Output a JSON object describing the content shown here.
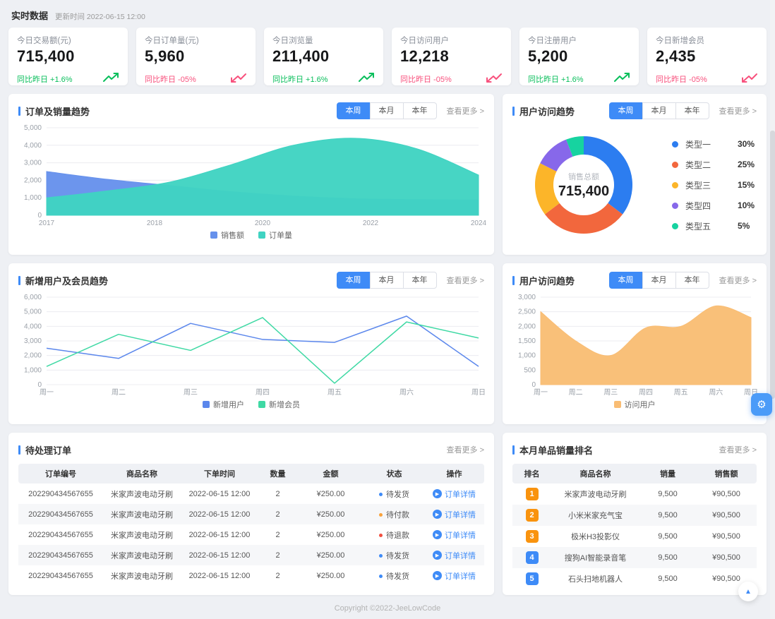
{
  "page": {
    "title": "实时数据",
    "updated_label": "更新时间 2022-06-15 12:00",
    "footer": "Copyright ©2022-JeeLowCode",
    "view_more": "查看更多 >",
    "tabs": [
      "本周",
      "本月",
      "本年"
    ],
    "active_tab": "本周"
  },
  "colors": {
    "accent": "#3e8bf7",
    "up_green": "#0abf5c",
    "down_pink": "#f8517d",
    "status": {
      "blue": "#3e8bf7",
      "orange": "#f9a23c",
      "red": "#f24f3f"
    },
    "badge": {
      "orange": "#f9930e",
      "blue": "#3e8bf7"
    }
  },
  "stat_cards": [
    {
      "label": "今日交易额(元)",
      "value": "715,400",
      "change_label": "同比昨日",
      "change": "+1.6%",
      "trend": "up"
    },
    {
      "label": "今日订单量(元)",
      "value": "5,960",
      "change_label": "同比昨日",
      "change": "-05%",
      "trend": "down"
    },
    {
      "label": "今日浏览量",
      "value": "211,400",
      "change_label": "同比昨日",
      "change": "+1.6%",
      "trend": "up"
    },
    {
      "label": "今日访问用户",
      "value": "12,218",
      "change_label": "同比昨日",
      "change": "-05%",
      "trend": "down"
    },
    {
      "label": "今日注册用户",
      "value": "5,200",
      "change_label": "同比昨日",
      "change": "+1.6%",
      "trend": "up"
    },
    {
      "label": "今日新增会员",
      "value": "2,435",
      "change_label": "同比昨日",
      "change": "-05%",
      "trend": "down"
    }
  ],
  "chart_data": [
    {
      "id": "orders-sales-trend",
      "type": "area",
      "title": "订单及销量趋势",
      "smooth": true,
      "area": true,
      "ylim": [
        0,
        5000
      ],
      "ystep": 1000,
      "grid": true,
      "legend_position": "bottom",
      "x_ticks": [
        {
          "label": "2017",
          "pos": 0
        },
        {
          "label": "2018",
          "pos": 0.25
        },
        {
          "label": "2020",
          "pos": 0.5
        },
        {
          "label": "2022",
          "pos": 0.75
        },
        {
          "label": "2024",
          "pos": 1
        }
      ],
      "series": [
        {
          "name": "销售额",
          "color": "#6691ec",
          "values": [
            2500,
            2050,
            1700,
            1350,
            1100,
            950,
            900,
            870
          ]
        },
        {
          "name": "订单量",
          "color": "#40d3c2",
          "values": [
            1000,
            1400,
            1900,
            2900,
            4000,
            4400,
            3800,
            2300
          ]
        }
      ]
    },
    {
      "id": "user-visit-donut",
      "type": "pie",
      "title": "用户访问趋势",
      "center_label": "销售总额",
      "center_value": "715,400",
      "legend_position": "right",
      "slices": [
        {
          "name": "类型一",
          "pct": "30%",
          "value": 30,
          "color": "#2c7df0"
        },
        {
          "name": "类型二",
          "pct": "25%",
          "value": 25,
          "color": "#f2673d"
        },
        {
          "name": "类型三",
          "pct": "15%",
          "value": 15,
          "color": "#fcb529"
        },
        {
          "name": "类型四",
          "pct": "10%",
          "value": 10,
          "color": "#8768ea"
        },
        {
          "name": "类型五",
          "pct": "5%",
          "value": 5,
          "color": "#16d3a0"
        }
      ]
    },
    {
      "id": "new-users-members-trend",
      "type": "line",
      "title": "新增用户及会员趋势",
      "smooth": false,
      "area": false,
      "ylim": [
        0,
        6000
      ],
      "ystep": 1000,
      "grid": true,
      "legend_position": "bottom",
      "x_ticks": [
        {
          "label": "周一",
          "pos": 0
        },
        {
          "label": "周二",
          "pos": 0.1667
        },
        {
          "label": "周三",
          "pos": 0.3333
        },
        {
          "label": "周四",
          "pos": 0.5
        },
        {
          "label": "周五",
          "pos": 0.6667
        },
        {
          "label": "周六",
          "pos": 0.8333
        },
        {
          "label": "周日",
          "pos": 1
        }
      ],
      "series": [
        {
          "name": "新增用户",
          "color": "#5b87ec",
          "values": [
            2500,
            1800,
            4200,
            3100,
            2900,
            4700,
            1250
          ]
        },
        {
          "name": "新增会员",
          "color": "#3fd9a4",
          "values": [
            1250,
            3450,
            2350,
            4600,
            100,
            4300,
            3200
          ]
        }
      ]
    },
    {
      "id": "visit-users-trend",
      "type": "area",
      "title": "用户访问趋势",
      "smooth": true,
      "area": true,
      "ylim": [
        0,
        3000
      ],
      "ystep": 500,
      "grid": true,
      "legend_position": "bottom",
      "x_ticks": [
        {
          "label": "周一",
          "pos": 0
        },
        {
          "label": "周二",
          "pos": 0.1667
        },
        {
          "label": "周三",
          "pos": 0.3333
        },
        {
          "label": "周四",
          "pos": 0.5
        },
        {
          "label": "周五",
          "pos": 0.6667
        },
        {
          "label": "周六",
          "pos": 0.8333
        },
        {
          "label": "周日",
          "pos": 1
        }
      ],
      "series": [
        {
          "name": "访问用户",
          "color": "#f9bd74",
          "values": [
            2500,
            1500,
            1000,
            1950,
            2000,
            2700,
            2300
          ]
        }
      ]
    }
  ],
  "pending_orders": {
    "title": "待处理订单",
    "headers": [
      "订单编号",
      "商品名称",
      "下单时间",
      "数量",
      "金额",
      "状态",
      "操作"
    ],
    "rows": [
      {
        "order_no": "202290434567655",
        "product": "米家声波电动牙刷",
        "time": "2022-06-15 12:00",
        "qty": "2",
        "amount": "¥250.00",
        "status": "待发货",
        "status_color": "blue",
        "action": "订单详情"
      },
      {
        "order_no": "202290434567655",
        "product": "米家声波电动牙刷",
        "time": "2022-06-15 12:00",
        "qty": "2",
        "amount": "¥250.00",
        "status": "待付款",
        "status_color": "orange",
        "action": "订单详情"
      },
      {
        "order_no": "202290434567655",
        "product": "米家声波电动牙刷",
        "time": "2022-06-15 12:00",
        "qty": "2",
        "amount": "¥250.00",
        "status": "待退款",
        "status_color": "red",
        "action": "订单详情"
      },
      {
        "order_no": "202290434567655",
        "product": "米家声波电动牙刷",
        "time": "2022-06-15 12:00",
        "qty": "2",
        "amount": "¥250.00",
        "status": "待发货",
        "status_color": "blue",
        "action": "订单详情"
      },
      {
        "order_no": "202290434567655",
        "product": "米家声波电动牙刷",
        "time": "2022-06-15 12:00",
        "qty": "2",
        "amount": "¥250.00",
        "status": "待发货",
        "status_color": "blue",
        "action": "订单详情"
      }
    ]
  },
  "ranking": {
    "title": "本月单品销量排名",
    "headers": [
      "排名",
      "商品名称",
      "销量",
      "销售额"
    ],
    "rows": [
      {
        "rank": "1",
        "badge": "orange",
        "product": "米家声波电动牙刷",
        "sales": "9,500",
        "amount": "¥90,500"
      },
      {
        "rank": "2",
        "badge": "orange",
        "product": "小米米家充气宝",
        "sales": "9,500",
        "amount": "¥90,500"
      },
      {
        "rank": "3",
        "badge": "orange",
        "product": "极米H3投影仪",
        "sales": "9,500",
        "amount": "¥90,500"
      },
      {
        "rank": "4",
        "badge": "blue",
        "product": "搜狗AI智能录音笔",
        "sales": "9,500",
        "amount": "¥90,500"
      },
      {
        "rank": "5",
        "badge": "blue",
        "product": "石头扫地机器人",
        "sales": "9,500",
        "amount": "¥90,500"
      }
    ]
  },
  "floating": {
    "gear_icon": "⚙",
    "back_to_top_icon": "▲"
  }
}
